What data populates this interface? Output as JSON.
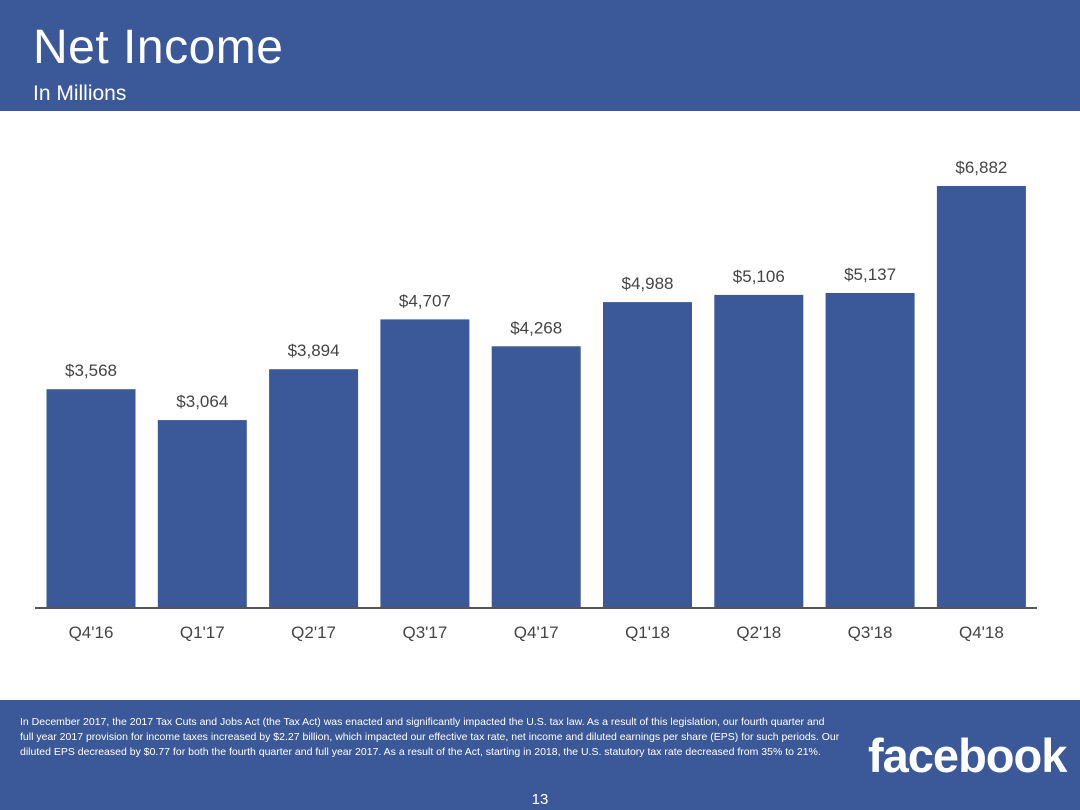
{
  "header": {
    "title": "Net Income",
    "subtitle": "In Millions"
  },
  "chart_data": {
    "type": "bar",
    "title": "Net Income",
    "subtitle": "In Millions",
    "xlabel": "",
    "ylabel": "",
    "categories": [
      "Q4'16",
      "Q1'17",
      "Q2'17",
      "Q3'17",
      "Q4'17",
      "Q1'18",
      "Q2'18",
      "Q3'18",
      "Q4'18"
    ],
    "values": [
      3568,
      3064,
      3894,
      4707,
      4268,
      4988,
      5106,
      5137,
      6882
    ],
    "value_labels": [
      "$3,568",
      "$3,064",
      "$3,894",
      "$4,707",
      "$4,268",
      "$4,988",
      "$5,106",
      "$5,137",
      "$6,882"
    ],
    "ylim": [
      0,
      6882
    ],
    "grid": false,
    "bar_color": "#3b5998"
  },
  "footer": {
    "note": "In December 2017, the 2017 Tax Cuts and Jobs Act (the Tax Act) was enacted and significantly impacted the U.S. tax law. As a result of this legislation, our fourth quarter and full year 2017 provision for income taxes increased by $2.27 billion, which impacted our effective tax rate, net income and diluted earnings per share (EPS) for such periods. Our diluted EPS decreased by $0.77 for both the fourth quarter and full year 2017. As a result of the Act, starting in 2018, the U.S. statutory tax rate decreased from 35% to 21%.",
    "logo_text": "facebook",
    "page_number": "13"
  },
  "colors": {
    "brand_blue": "#3b5998",
    "background": "#ffffff"
  }
}
